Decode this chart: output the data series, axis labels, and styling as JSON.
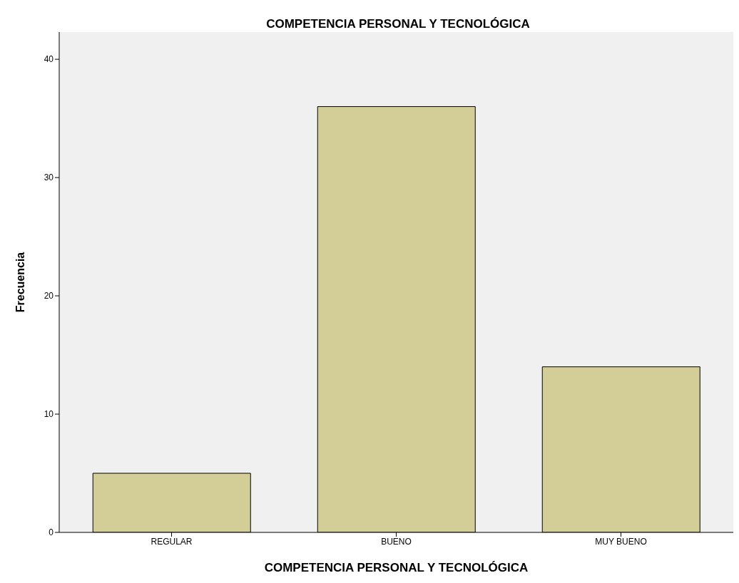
{
  "chart_data": {
    "type": "bar",
    "title": "COMPETENCIA PERSONAL Y TECNOLÓGICA",
    "xlabel": "COMPETENCIA PERSONAL Y TECNOLÓGICA",
    "ylabel": "Frecuencia",
    "categories": [
      "REGULAR",
      "BUENO",
      "MUY BUENO"
    ],
    "values": [
      5,
      36,
      14
    ],
    "color": "#d3ce97",
    "ylim": [
      0,
      42.3
    ],
    "yticks": [
      0,
      10,
      20,
      30,
      40
    ],
    "grid": false,
    "legend": false
  }
}
